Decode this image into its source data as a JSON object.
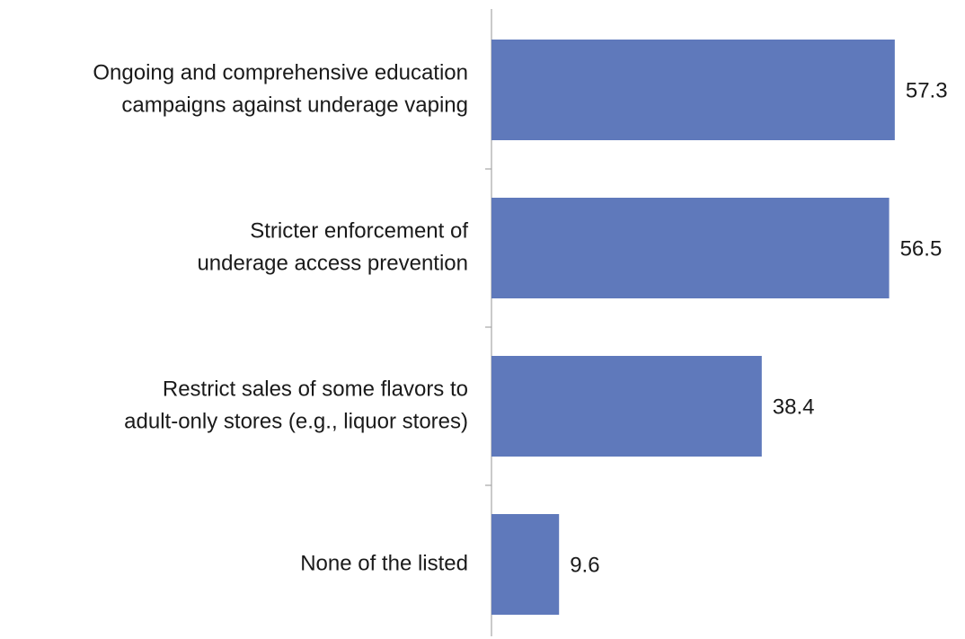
{
  "chart_data": {
    "type": "bar",
    "orientation": "horizontal",
    "categories": [
      [
        "Ongoing and comprehensive education",
        "campaigns against underage vaping"
      ],
      [
        "Stricter enforcement of",
        "underage access prevention"
      ],
      [
        "Restrict sales of some flavors to",
        "adult-only stores (e.g., liquor stores)"
      ],
      [
        "None of the listed"
      ]
    ],
    "values": [
      57.3,
      56.5,
      38.4,
      9.6
    ],
    "color": "#5f79bb",
    "xlim": [
      0,
      60
    ]
  }
}
